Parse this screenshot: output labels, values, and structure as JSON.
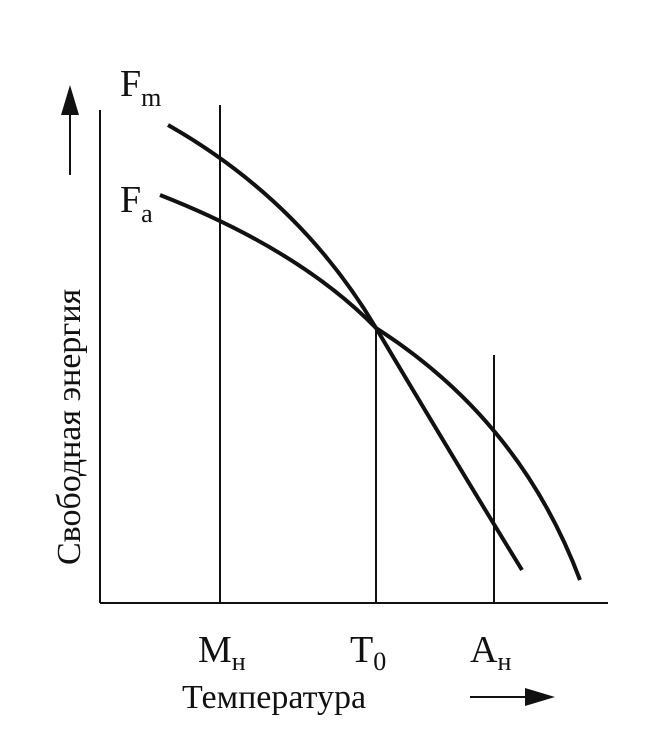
{
  "axes": {
    "y_label": "Свободная энергия",
    "x_label": "Температура"
  },
  "curves": [
    {
      "label": "F",
      "subscript": "m"
    },
    {
      "label": "F",
      "subscript": "a"
    }
  ],
  "markers": [
    {
      "label": "M",
      "subscript": "н"
    },
    {
      "label": "T",
      "subscript": "0"
    },
    {
      "label": "A",
      "subscript": "н"
    }
  ]
}
